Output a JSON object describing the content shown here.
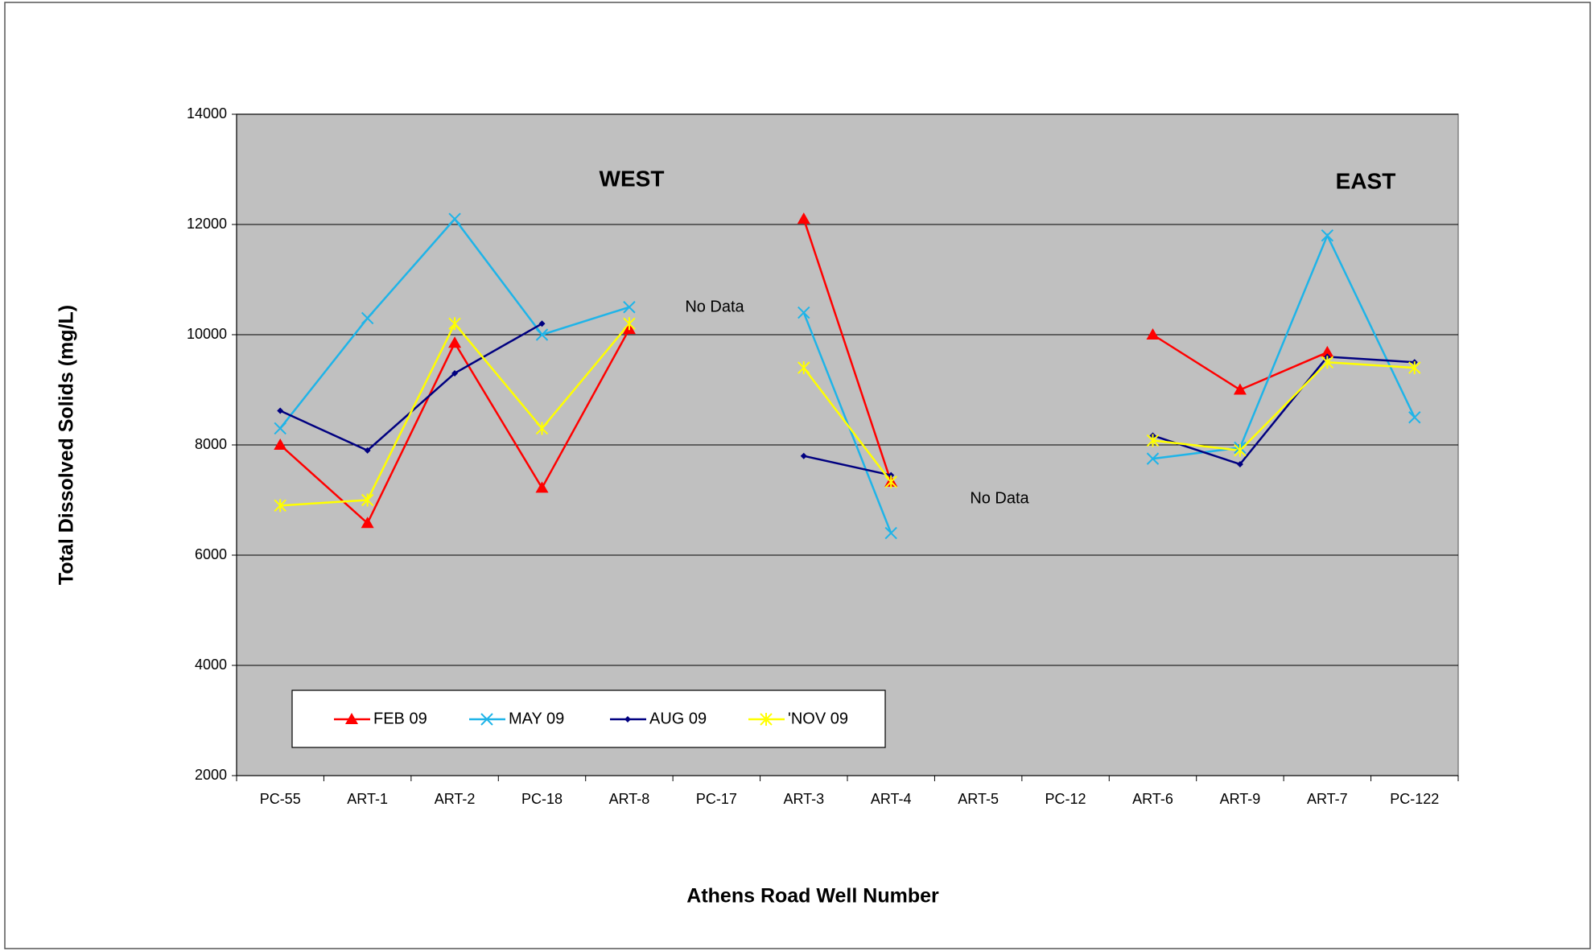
{
  "chart_data": {
    "type": "line",
    "x_label": "Athens Road Well Number",
    "y_label": "Total Dissolved Solids (mg/L)",
    "annotations": [
      "WEST",
      "EAST",
      "No Data",
      "No Data"
    ],
    "categories": [
      "PC-55",
      "ART-1",
      "ART-2",
      "PC-18",
      "ART-8",
      "PC-17",
      "ART-3",
      "ART-4",
      "ART-5",
      "PC-12",
      "ART-6",
      "ART-9",
      "ART-7",
      "PC-122"
    ],
    "series": [
      {
        "name": "FEB 09",
        "color": "#ff0000",
        "marker": "triangle",
        "values": [
          8000,
          6580,
          9850,
          7220,
          10100,
          null,
          12100,
          7330,
          null,
          null,
          10000,
          9000,
          9680,
          null
        ]
      },
      {
        "name": "MAY 09",
        "color": "#1fb4e8",
        "marker": "x",
        "values": [
          8300,
          10300,
          12100,
          10000,
          10500,
          null,
          10400,
          6400,
          null,
          null,
          7750,
          7950,
          11800,
          8500
        ]
      },
      {
        "name": "AUG 09",
        "color": "#000080",
        "marker": "diamond",
        "values": [
          8620,
          7900,
          9300,
          10200,
          null,
          null,
          7800,
          7450,
          null,
          null,
          8170,
          7650,
          9600,
          9500
        ]
      },
      {
        "name": "'NOV 09",
        "color": "#ffff00",
        "marker": "star",
        "values": [
          6900,
          7000,
          10200,
          8300,
          10200,
          null,
          9400,
          7330,
          null,
          null,
          8080,
          7900,
          9500,
          9400
        ]
      }
    ],
    "ylim": [
      2000,
      14000
    ],
    "yticks": [
      2000,
      4000,
      6000,
      8000,
      10000,
      12000,
      14000
    ],
    "grid": true,
    "plot_background": "#c0c0c0",
    "legend": "lower left"
  }
}
